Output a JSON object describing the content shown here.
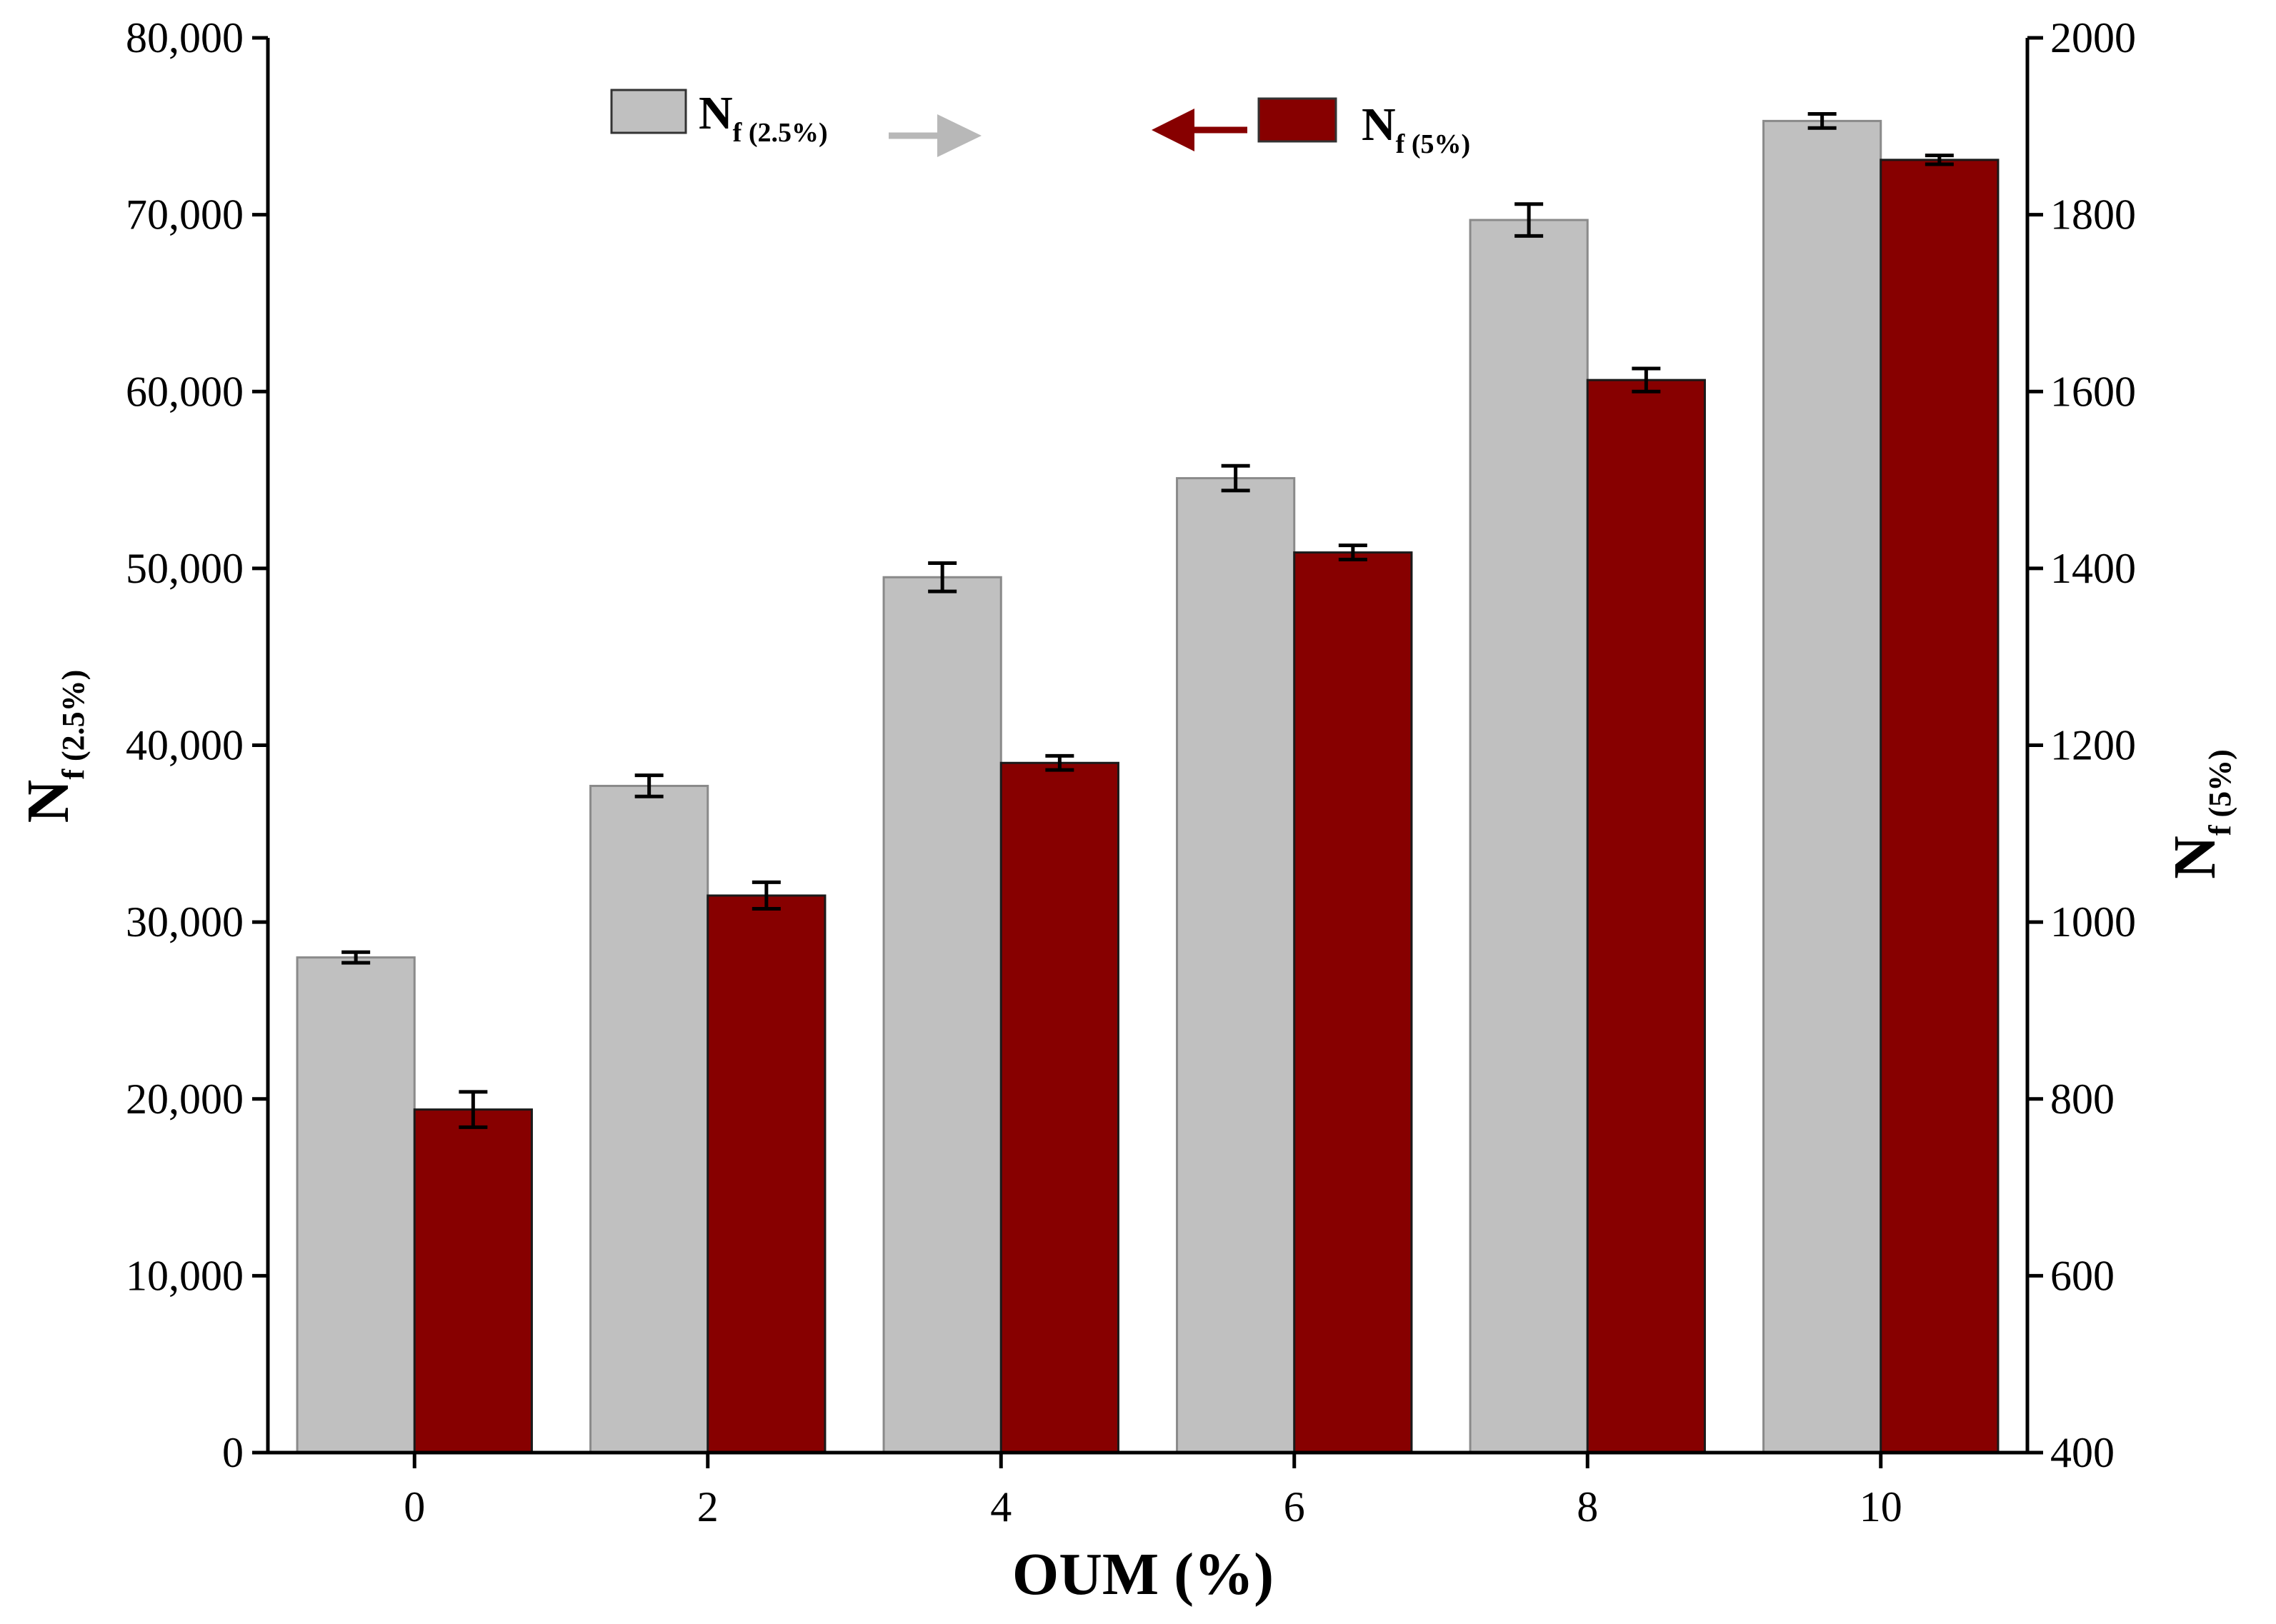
{
  "chart_data": {
    "type": "bar",
    "categories": [
      "0",
      "2",
      "4",
      "6",
      "8",
      "10"
    ],
    "series": [
      {
        "name": "Nf (2.5%)",
        "axis": "left",
        "color": "#c0c0c0",
        "edge_color": "#8a8a8a",
        "values": [
          28000,
          37700,
          49500,
          55100,
          69700,
          75300
        ],
        "errors": [
          300,
          600,
          800,
          700,
          900,
          400
        ]
      },
      {
        "name": "Nf (5%)",
        "axis": "right",
        "color": "#870000",
        "edge_color": "#1a1a1a",
        "values": [
          788,
          1030,
          1180,
          1418,
          1613,
          1862
        ],
        "errors": [
          20,
          15,
          8,
          8,
          13,
          5
        ]
      }
    ],
    "xlabel": "OUM (%)",
    "left_axis": {
      "label_main": "N",
      "label_sub": "f (2.5%)",
      "ylim": [
        0,
        80000
      ],
      "ticks": [
        0,
        10000,
        20000,
        30000,
        40000,
        50000,
        60000,
        70000,
        80000
      ],
      "tick_labels": [
        "0",
        "10,000",
        "20,000",
        "30,000",
        "40,000",
        "50,000",
        "60,000",
        "70,000",
        "80,000"
      ]
    },
    "right_axis": {
      "label_main": "N",
      "label_sub": "f (5%)",
      "ylim": [
        400,
        2000
      ],
      "ticks": [
        400,
        600,
        800,
        1000,
        1200,
        1400,
        1600,
        1800,
        2000
      ],
      "tick_labels": [
        "400",
        "600",
        "800",
        "1000",
        "1200",
        "1400",
        "1600",
        "1800",
        "2000"
      ]
    },
    "legend": {
      "placement": "top-center",
      "items": [
        {
          "main": "N",
          "sub": "f (2.5%)",
          "arrow": "right",
          "arrow_color": "#b8b8b8"
        },
        {
          "main": "N",
          "sub": "f (5%)",
          "arrow": "left",
          "arrow_color": "#870000"
        }
      ]
    }
  }
}
